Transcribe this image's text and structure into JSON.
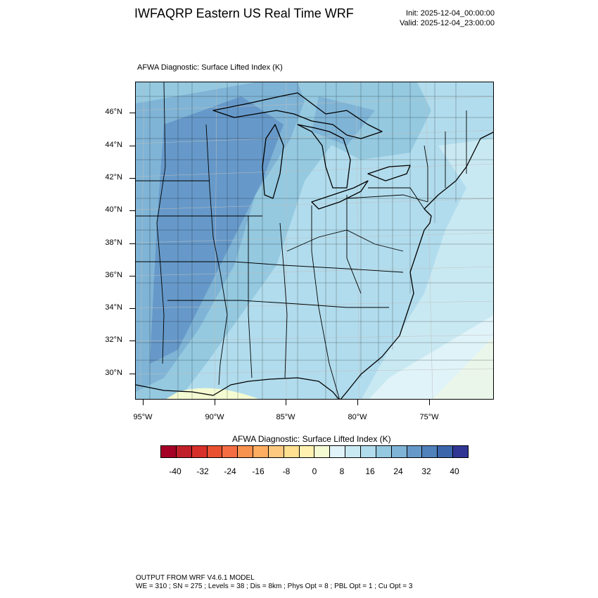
{
  "header": {
    "title": "IWFAQRP Eastern US Real Time WRF",
    "init": "Init: 2025-12-04_00:00:00",
    "valid": "Valid: 2025-12-04_23:00:00"
  },
  "map": {
    "subtitle": "AFWA Diagnostic: Surface Lifted Index   (K)",
    "lat_labels": [
      "46°N",
      "44°N",
      "42°N",
      "40°N",
      "38°N",
      "36°N",
      "34°N",
      "32°N",
      "30°N"
    ],
    "lon_labels": [
      "95°W",
      "90°W",
      "85°W",
      "80°W",
      "75°W"
    ]
  },
  "colorbar": {
    "title": "AFWA Diagnostic: Surface Lifted Index  (K)",
    "labels": [
      "-40",
      "-32",
      "-24",
      "-16",
      "-8",
      "0",
      "8",
      "16",
      "24",
      "32",
      "40"
    ],
    "colors": [
      "#a50026",
      "#c0202a",
      "#d7302a",
      "#e8502f",
      "#f46d43",
      "#f8924f",
      "#fdae61",
      "#fdc980",
      "#fee090",
      "#fff2b0",
      "#f4fbd2",
      "#e0f3f8",
      "#c9e9f2",
      "#b1dced",
      "#94c9e0",
      "#7fb4d6",
      "#6699c9",
      "#5081bb",
      "#3b66ac",
      "#313695"
    ]
  },
  "footer": {
    "line1": "OUTPUT FROM WRF V4.6.1 MODEL",
    "line2": "WE = 310 ; SN = 275 ; Levels = 38 ; Dis = 8km ; Phys Opt = 8 ; PBL Opt = 1 ; Cu Opt = 3"
  }
}
